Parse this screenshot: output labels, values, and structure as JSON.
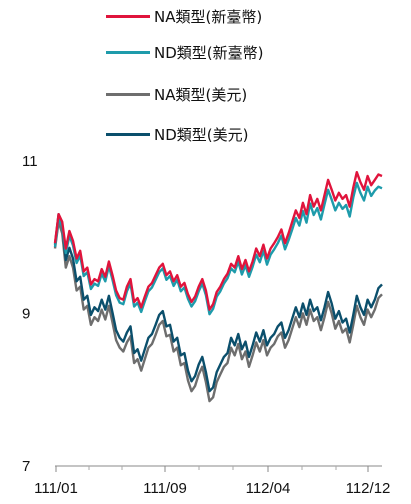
{
  "chart_data": {
    "type": "line",
    "title": "",
    "xlabel": "",
    "ylabel": "",
    "ylim": [
      7,
      11.6
    ],
    "yticks": [
      7,
      9,
      11
    ],
    "xtick_labels": [
      "111/01",
      "111/09",
      "112/04",
      "112/12"
    ],
    "grid": false,
    "legend_position": "top",
    "series": [
      {
        "name": "NA類型(新臺幣)",
        "color": "#e0143c",
        "values": [
          9.92,
          10.3,
          10.2,
          9.85,
          10.08,
          9.95,
          9.72,
          9.82,
          9.55,
          9.6,
          9.38,
          9.45,
          9.42,
          9.58,
          9.48,
          9.68,
          9.5,
          9.3,
          9.2,
          9.18,
          9.35,
          9.45,
          9.15,
          9.2,
          9.08,
          9.22,
          9.35,
          9.4,
          9.5,
          9.6,
          9.65,
          9.5,
          9.55,
          9.42,
          9.5,
          9.35,
          9.4,
          9.25,
          9.15,
          9.22,
          9.35,
          9.45,
          9.3,
          9.05,
          9.12,
          9.28,
          9.35,
          9.45,
          9.52,
          9.65,
          9.6,
          9.75,
          9.58,
          9.7,
          9.55,
          9.68,
          9.85,
          9.75,
          9.9,
          9.72,
          9.85,
          9.92,
          10.0,
          10.1,
          9.92,
          10.05,
          10.2,
          10.35,
          10.25,
          10.45,
          10.3,
          10.55,
          10.4,
          10.5,
          10.35,
          10.55,
          10.75,
          10.62,
          10.48,
          10.58,
          10.5,
          10.55,
          10.4,
          10.65,
          10.85,
          10.72,
          10.62,
          10.8,
          10.68,
          10.75,
          10.82,
          10.8
        ]
      },
      {
        "name": "ND類型(新臺幣)",
        "color": "#1e9bab",
        "values": [
          9.87,
          10.24,
          10.14,
          9.79,
          10.02,
          9.89,
          9.66,
          9.76,
          9.49,
          9.54,
          9.32,
          9.39,
          9.36,
          9.52,
          9.42,
          9.62,
          9.44,
          9.24,
          9.14,
          9.12,
          9.29,
          9.39,
          9.09,
          9.14,
          9.02,
          9.16,
          9.29,
          9.34,
          9.44,
          9.54,
          9.59,
          9.44,
          9.49,
          9.36,
          9.44,
          9.29,
          9.34,
          9.19,
          9.09,
          9.16,
          9.29,
          9.39,
          9.24,
          8.99,
          9.06,
          9.22,
          9.29,
          9.39,
          9.46,
          9.59,
          9.54,
          9.68,
          9.51,
          9.63,
          9.48,
          9.61,
          9.77,
          9.67,
          9.82,
          9.64,
          9.77,
          9.84,
          9.92,
          10.02,
          9.84,
          9.96,
          10.1,
          10.25,
          10.15,
          10.34,
          10.19,
          10.44,
          10.29,
          10.38,
          10.23,
          10.43,
          10.62,
          10.49,
          10.35,
          10.45,
          10.37,
          10.42,
          10.27,
          10.52,
          10.71,
          10.58,
          10.48,
          10.66,
          10.54,
          10.61,
          10.66,
          10.64
        ]
      },
      {
        "name": "NA類型(美元)",
        "color": "#6e6e6e",
        "values": [
          9.85,
          10.2,
          10.05,
          9.6,
          9.75,
          9.6,
          9.3,
          9.35,
          9.05,
          9.1,
          8.85,
          8.95,
          8.9,
          9.05,
          8.92,
          9.1,
          8.88,
          8.65,
          8.55,
          8.5,
          8.62,
          8.7,
          8.35,
          8.4,
          8.25,
          8.4,
          8.55,
          8.6,
          8.72,
          8.85,
          8.9,
          8.7,
          8.72,
          8.5,
          8.55,
          8.32,
          8.35,
          8.12,
          7.98,
          8.05,
          8.2,
          8.3,
          8.1,
          7.85,
          7.9,
          8.1,
          8.2,
          8.3,
          8.35,
          8.55,
          8.45,
          8.6,
          8.4,
          8.5,
          8.3,
          8.45,
          8.62,
          8.5,
          8.65,
          8.45,
          8.55,
          8.6,
          8.7,
          8.75,
          8.55,
          8.65,
          8.8,
          8.95,
          8.82,
          9.0,
          8.85,
          9.05,
          8.9,
          8.95,
          8.78,
          8.95,
          9.15,
          9.0,
          8.8,
          8.9,
          8.75,
          8.8,
          8.62,
          8.85,
          9.1,
          8.95,
          8.85,
          9.05,
          8.95,
          9.05,
          9.2,
          9.25
        ]
      },
      {
        "name": "ND類型(美元)",
        "color": "#0b4f6c",
        "values": [
          9.9,
          10.3,
          10.15,
          9.7,
          9.86,
          9.72,
          9.42,
          9.48,
          9.18,
          9.23,
          8.98,
          9.08,
          9.03,
          9.18,
          9.05,
          9.23,
          9.01,
          8.78,
          8.68,
          8.63,
          8.75,
          8.83,
          8.48,
          8.53,
          8.38,
          8.53,
          8.68,
          8.73,
          8.85,
          8.98,
          9.03,
          8.83,
          8.85,
          8.63,
          8.68,
          8.45,
          8.48,
          8.25,
          8.11,
          8.18,
          8.33,
          8.43,
          8.23,
          7.98,
          8.03,
          8.23,
          8.33,
          8.43,
          8.48,
          8.68,
          8.58,
          8.73,
          8.53,
          8.63,
          8.43,
          8.58,
          8.75,
          8.63,
          8.78,
          8.58,
          8.68,
          8.73,
          8.83,
          8.88,
          8.68,
          8.78,
          8.93,
          9.08,
          8.95,
          9.13,
          8.98,
          9.18,
          9.03,
          9.08,
          8.91,
          9.08,
          9.28,
          9.13,
          8.93,
          9.03,
          8.88,
          8.93,
          8.75,
          8.98,
          9.23,
          9.08,
          8.98,
          9.18,
          9.08,
          9.18,
          9.33,
          9.38
        ]
      }
    ]
  }
}
